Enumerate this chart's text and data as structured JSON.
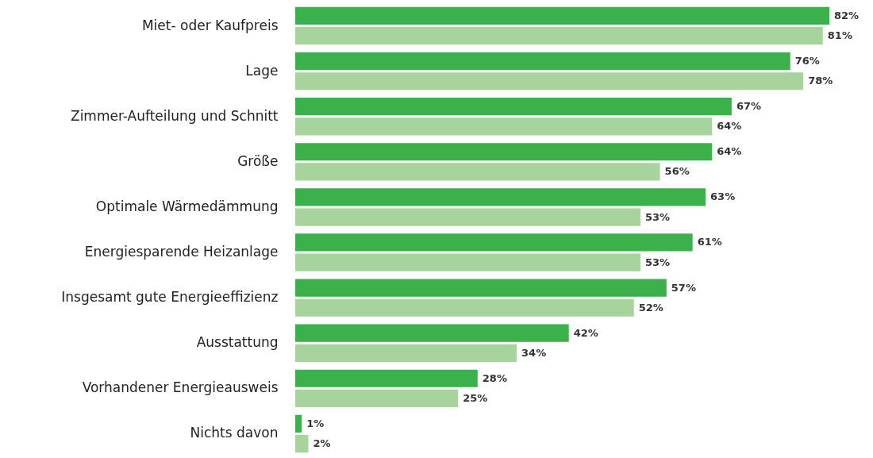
{
  "chart_data": {
    "type": "bar",
    "orientation": "horizontal",
    "categories": [
      "Miet- oder Kaufpreis",
      "Lage",
      "Zimmer-Aufteilung und Schnitt",
      "Größe",
      "Optimale Wärmedämmung",
      "Energiesparende  Heizanlage",
      "Insgesamt gute Energieeffizienz",
      "Ausstattung",
      "Vorhandener Energieausweis",
      "Nichts davon"
    ],
    "series": [
      {
        "color": "#3cb04a",
        "values": [
          82,
          76,
          67,
          64,
          63,
          61,
          57,
          42,
          28,
          1
        ],
        "value_labels": [
          "82%",
          "76%",
          "67%",
          "64%",
          "63%",
          "61%",
          "57%",
          "42%",
          "28%",
          "1%"
        ]
      },
      {
        "color": "#a6d49c",
        "values": [
          81,
          78,
          64,
          56,
          53,
          53,
          52,
          34,
          25,
          2
        ],
        "value_labels": [
          "81%",
          "78%",
          "64%",
          "56%",
          "53%",
          "53%",
          "52%",
          "34%",
          "25%",
          "2%"
        ]
      }
    ],
    "tick_labels": "y"
  }
}
